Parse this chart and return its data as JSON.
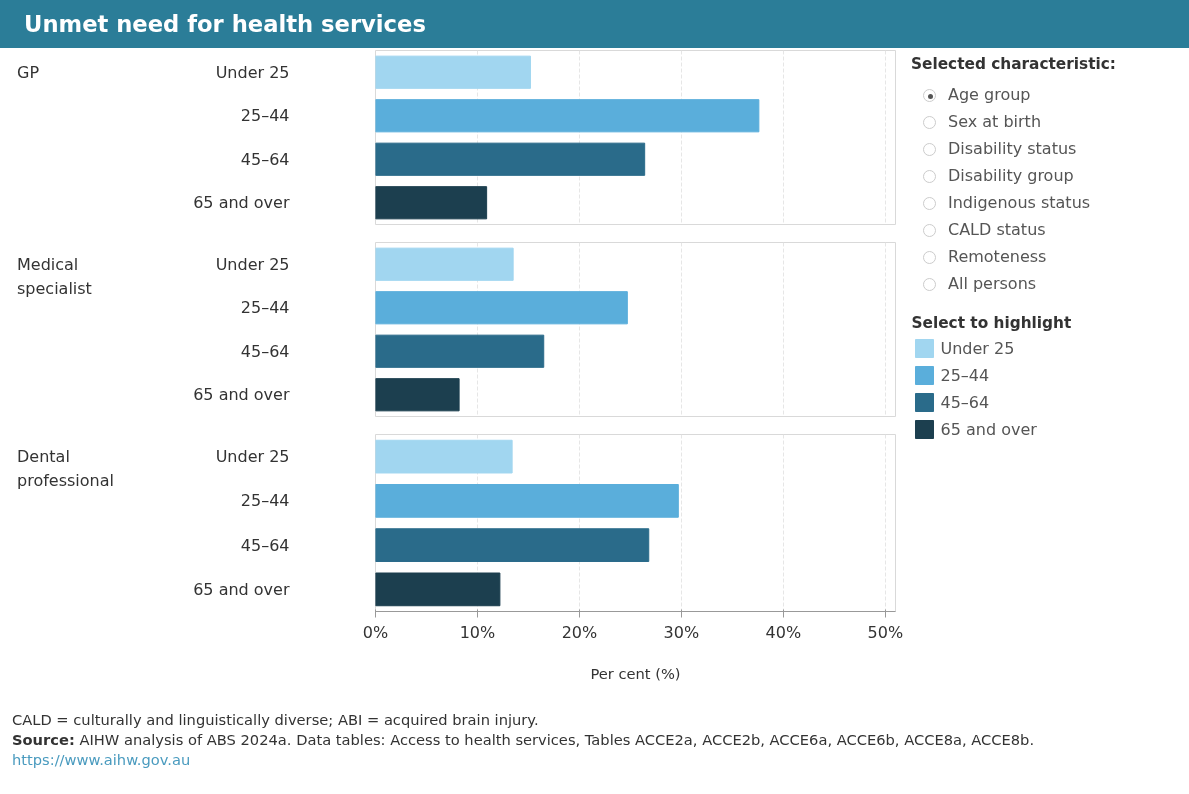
{
  "chart_data": [
    {
      "type": "bar",
      "orientation": "horizontal",
      "title": "Unmet need for health services",
      "ylabel": "GP",
      "categories": [
        "Under 25",
        "25–44",
        "45–64",
        "65 and over"
      ],
      "values": [
        15.2,
        37.6,
        26.4,
        10.9
      ],
      "colors": [
        "#a1d6f0",
        "#5aaedb",
        "#2a6b8a",
        "#1c3f4f"
      ],
      "xlim": [
        0,
        51
      ],
      "xticks": [
        {
          "value": 0,
          "label": null
        },
        {
          "value": 10,
          "label": null
        },
        {
          "value": 20,
          "label": null
        },
        {
          "value": 30,
          "label": null
        },
        {
          "value": 40,
          "label": null
        },
        {
          "value": 50,
          "label": null
        }
      ],
      "tick_labels": "y",
      "grid": "x"
    },
    {
      "type": "bar",
      "orientation": "horizontal",
      "ylabel": "Medical specialist",
      "categories": [
        "Under 25",
        "25–44",
        "45–64",
        "65 and over"
      ],
      "values": [
        13.5,
        24.7,
        16.5,
        8.2
      ],
      "colors": [
        "#a1d6f0",
        "#5aaedb",
        "#2a6b8a",
        "#1c3f4f"
      ],
      "xlim": [
        0,
        51
      ],
      "xticks": [
        {
          "value": 0,
          "label": null
        },
        {
          "value": 10,
          "label": null
        },
        {
          "value": 20,
          "label": null
        },
        {
          "value": 30,
          "label": null
        },
        {
          "value": 40,
          "label": null
        },
        {
          "value": 50,
          "label": null
        }
      ],
      "tick_labels": "y",
      "grid": "x"
    },
    {
      "type": "bar",
      "orientation": "horizontal",
      "ylabel": "Dental professional",
      "xlabel": "Per cent (%)",
      "categories": [
        "Under 25",
        "25–44",
        "45–64",
        "65 and over"
      ],
      "values": [
        13.4,
        29.7,
        26.8,
        12.2
      ],
      "colors": [
        "#a1d6f0",
        "#5aaedb",
        "#2a6b8a",
        "#1c3f4f"
      ],
      "xlim": [
        0,
        51
      ],
      "xticks": [
        {
          "value": 0,
          "label": "0%"
        },
        {
          "value": 10,
          "label": "10%"
        },
        {
          "value": 20,
          "label": "20%"
        },
        {
          "value": 30,
          "label": "30%"
        },
        {
          "value": 40,
          "label": "40%"
        },
        {
          "value": 50,
          "label": "50%"
        }
      ],
      "grid": "x",
      "annotations": [
        "CALD = culturally and linguistically diverse; ABI = acquired brain injury.",
        "Source: AIHW analysis of ABS 2024a. Data tables: Access to health services, Tables ACCE2a, ACCE2b, ACCE6a, ACCE6b, ACCE8a, ACCE8b.",
        "https://www.aihw.gov.au"
      ]
    },
    {
      "type": "other",
      "title": "Selected characteristic:",
      "categories": [
        "Age group",
        "Sex at birth",
        "Disability status",
        "Disability group",
        "Indigenous status",
        "CALD status",
        "Remoteness",
        "All persons"
      ]
    },
    {
      "type": "other",
      "title": "Select to highlight",
      "categories": [
        "Under 25",
        "25–44",
        "45–64",
        "65 and over"
      ],
      "colors": [
        "#a1d6f0",
        "#5aaedb",
        "#2a6b8a",
        "#1c3f4f"
      ]
    }
  ]
}
